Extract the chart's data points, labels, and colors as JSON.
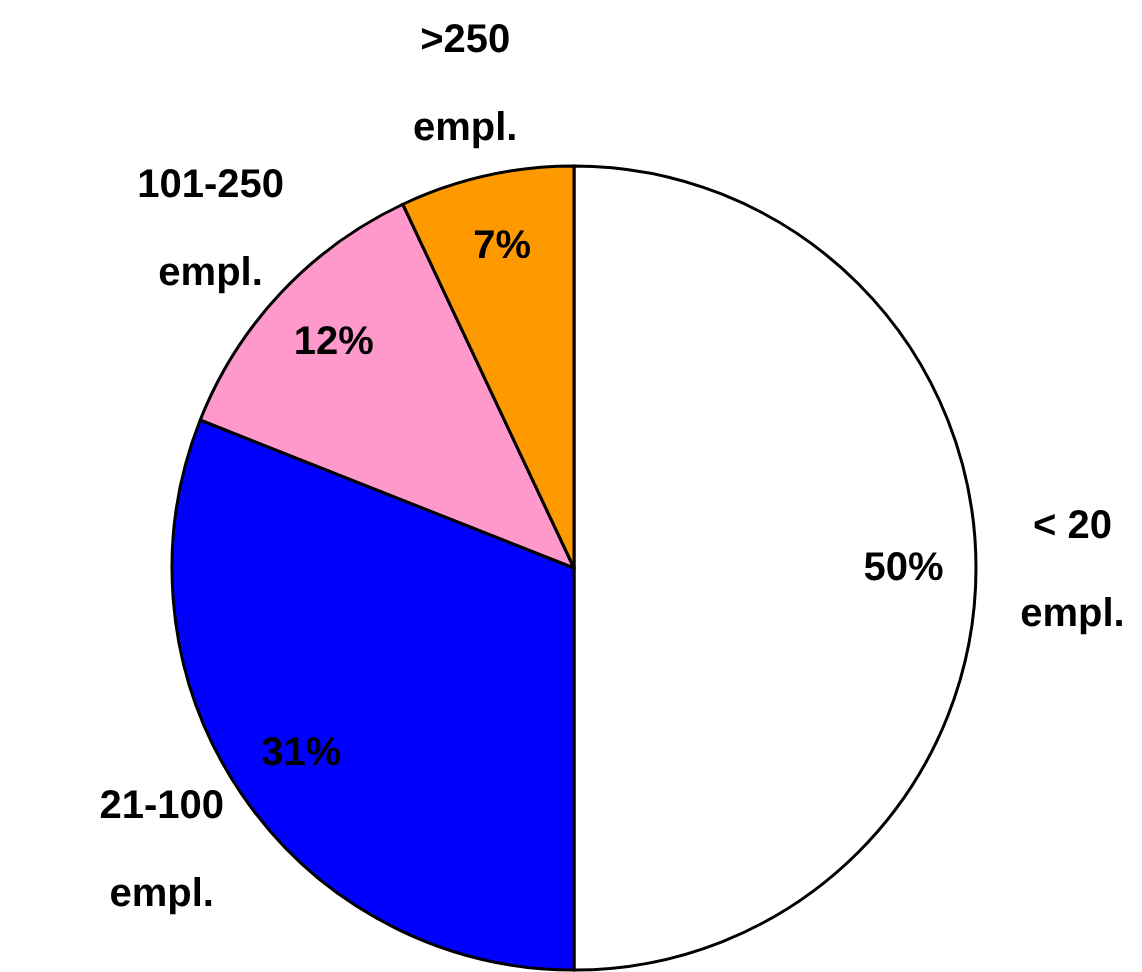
{
  "chart_data": {
    "type": "pie",
    "categories": [
      "< 20 empl.",
      "21-100 empl.",
      "101-250 empl.",
      ">250 empl."
    ],
    "values": [
      50,
      31,
      12,
      7
    ],
    "colors": [
      "#ffffff",
      "#0000ff",
      "#ff99cc",
      "#ff9900"
    ],
    "value_labels": [
      "50%",
      "31%",
      "12%",
      "7%"
    ]
  }
}
